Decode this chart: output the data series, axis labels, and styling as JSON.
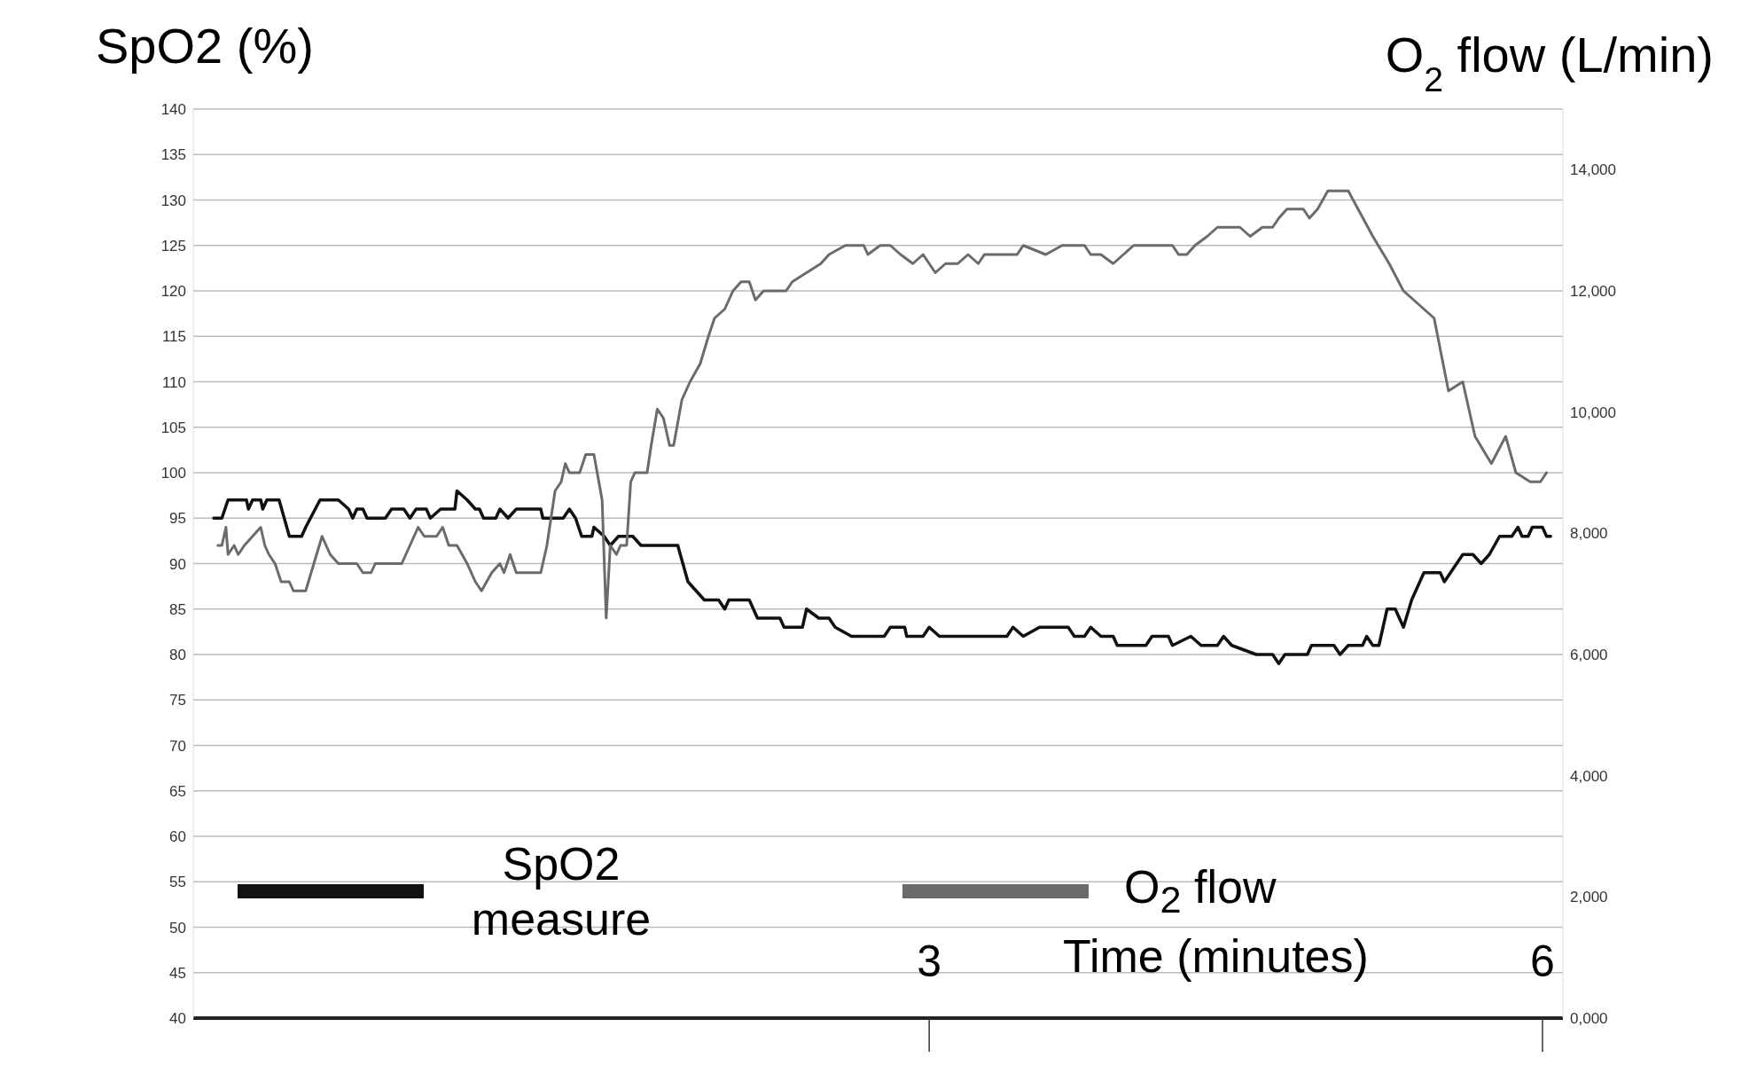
{
  "chart_data": {
    "type": "line",
    "xlabel": "Time (minutes)",
    "ylabel": "SpO2 (%)",
    "y2label": "O$_{2}$ flow (L/min)",
    "xlim": [
      -0.6,
      6.1
    ],
    "xticks": [
      3,
      6
    ],
    "ylim": [
      40,
      140
    ],
    "yticks": [
      40,
      45,
      50,
      55,
      60,
      65,
      70,
      75,
      80,
      85,
      90,
      95,
      100,
      105,
      110,
      115,
      120,
      125,
      130,
      135,
      140
    ],
    "y2lim": [
      0,
      15000
    ],
    "y2ticks": [
      {
        "value": 0,
        "label": "0,000"
      },
      {
        "value": 2000,
        "label": "2,000"
      },
      {
        "value": 4000,
        "label": "4,000"
      },
      {
        "value": 6000,
        "label": "6,000"
      },
      {
        "value": 8000,
        "label": "8,000"
      },
      {
        "value": 10000,
        "label": "10,000"
      },
      {
        "value": 12000,
        "label": "12,000"
      },
      {
        "value": 14000,
        "label": "14,000"
      }
    ],
    "grid": "y",
    "legend": "bottom",
    "marker": "none",
    "line_style": "solid",
    "series": [
      {
        "name": "SpO2 measure",
        "color": "#111111",
        "x": [
          -0.5,
          -0.46,
          -0.43,
          -0.34,
          -0.33,
          -0.31,
          -0.27,
          -0.26,
          -0.24,
          -0.18,
          -0.13,
          -0.07,
          -0.05,
          0.02,
          0.11,
          0.16,
          0.18,
          0.2,
          0.23,
          0.25,
          0.34,
          0.37,
          0.43,
          0.46,
          0.49,
          0.54,
          0.56,
          0.61,
          0.68,
          0.69,
          0.74,
          0.78,
          0.8,
          0.82,
          0.88,
          0.9,
          0.94,
          0.98,
          1.1,
          1.11,
          1.21,
          1.24,
          1.27,
          1.3,
          1.35,
          1.36,
          1.41,
          1.44,
          1.48,
          1.55,
          1.59,
          1.77,
          1.82,
          1.86,
          1.9,
          1.97,
          2.0,
          2.02,
          2.12,
          2.16,
          2.27,
          2.29,
          2.38,
          2.4,
          2.46,
          2.51,
          2.54,
          2.62,
          2.78,
          2.81,
          2.88,
          2.89,
          2.97,
          3.0,
          3.05,
          3.38,
          3.41,
          3.46,
          3.54,
          3.68,
          3.71,
          3.76,
          3.79,
          3.84,
          3.9,
          3.92,
          4.06,
          4.09,
          4.17,
          4.19,
          4.28,
          4.33,
          4.41,
          4.44,
          4.48,
          4.6,
          4.68,
          4.71,
          4.74,
          4.85,
          4.87,
          4.98,
          5.01,
          5.05,
          5.12,
          5.14,
          5.17,
          5.2,
          5.24,
          5.28,
          5.32,
          5.36,
          5.42,
          5.5,
          5.52,
          5.55,
          5.61,
          5.66,
          5.7,
          5.74,
          5.79,
          5.85,
          5.88,
          5.9,
          5.93,
          5.95,
          6.0,
          6.02,
          6.04
        ],
        "values": [
          95,
          95,
          97,
          97,
          96,
          97,
          97,
          96,
          97,
          97,
          93,
          93,
          94,
          97,
          97,
          96,
          95,
          96,
          96,
          95,
          95,
          96,
          96,
          95,
          96,
          96,
          95,
          96,
          96,
          98,
          97,
          96,
          96,
          95,
          95,
          96,
          95,
          96,
          96,
          95,
          95,
          96,
          95,
          93,
          93,
          94,
          93,
          92,
          93,
          93,
          92,
          92,
          88,
          87,
          86,
          86,
          85,
          86,
          86,
          84,
          84,
          83,
          83,
          85,
          84,
          84,
          83,
          82,
          82,
          83,
          83,
          82,
          82,
          83,
          82,
          82,
          83,
          82,
          83,
          83,
          82,
          82,
          83,
          82,
          82,
          81,
          81,
          82,
          82,
          81,
          82,
          81,
          81,
          82,
          81,
          80,
          80,
          79,
          80,
          80,
          81,
          81,
          80,
          81,
          81,
          82,
          81,
          81,
          85,
          85,
          83,
          86,
          89,
          89,
          88,
          89,
          91,
          91,
          90,
          91,
          93,
          93,
          94,
          93,
          93,
          94,
          94,
          93,
          93
        ]
      },
      {
        "name": "O$_{2}$ flow",
        "color": "#6b6b6b",
        "axis": "y2",
        "x": [
          -0.48,
          -0.46,
          -0.44,
          -0.43,
          -0.4,
          -0.38,
          -0.35,
          -0.31,
          -0.27,
          -0.25,
          -0.23,
          -0.2,
          -0.17,
          -0.13,
          -0.11,
          -0.05,
          -0.01,
          0.03,
          0.07,
          0.11,
          0.2,
          0.23,
          0.27,
          0.29,
          0.42,
          0.46,
          0.5,
          0.53,
          0.59,
          0.62,
          0.65,
          0.69,
          0.74,
          0.78,
          0.81,
          0.86,
          0.9,
          0.92,
          0.95,
          0.98,
          1.02,
          1.1,
          1.13,
          1.17,
          1.2,
          1.22,
          1.24,
          1.29,
          1.32,
          1.36,
          1.4,
          1.42,
          1.44,
          1.47,
          1.49,
          1.52,
          1.54,
          1.56,
          1.62,
          1.64,
          1.67,
          1.7,
          1.73,
          1.75,
          1.79,
          1.83,
          1.88,
          1.92,
          1.95,
          2.0,
          2.04,
          2.08,
          2.12,
          2.15,
          2.19,
          2.3,
          2.33,
          2.4,
          2.47,
          2.51,
          2.59,
          2.68,
          2.7,
          2.76,
          2.81,
          2.86,
          2.92,
          2.97,
          3.03,
          3.08,
          3.14,
          3.19,
          3.24,
          3.27,
          3.35,
          3.43,
          3.46,
          3.57,
          3.65,
          3.76,
          3.79,
          3.84,
          3.9,
          3.95,
          4.0,
          4.19,
          4.22,
          4.26,
          4.3,
          4.36,
          4.41,
          4.52,
          4.57,
          4.63,
          4.68,
          4.71,
          4.75,
          4.83,
          4.86,
          4.9,
          4.95,
          5.05,
          5.17,
          5.25,
          5.32,
          5.47,
          5.54,
          5.61,
          5.67,
          5.75,
          5.82,
          5.87,
          5.94,
          5.99,
          6.02
        ],
        "values": [
          7800,
          7800,
          8100,
          7650,
          7800,
          7650,
          7800,
          7950,
          8100,
          7800,
          7650,
          7500,
          7200,
          7200,
          7050,
          7050,
          7500,
          7950,
          7650,
          7500,
          7500,
          7350,
          7350,
          7500,
          7500,
          7800,
          8100,
          7950,
          7950,
          8100,
          7800,
          7800,
          7500,
          7200,
          7050,
          7350,
          7500,
          7350,
          7650,
          7350,
          7350,
          7350,
          7800,
          8700,
          8850,
          9150,
          9000,
          9000,
          9300,
          9300,
          8550,
          6600,
          7800,
          7650,
          7800,
          7800,
          8850,
          9000,
          9000,
          9450,
          10050,
          9900,
          9450,
          9450,
          10200,
          10500,
          10800,
          11250,
          11550,
          11700,
          12000,
          12150,
          12150,
          11850,
          12000,
          12000,
          12150,
          12300,
          12450,
          12600,
          12750,
          12750,
          12600,
          12750,
          12750,
          12600,
          12450,
          12600,
          12300,
          12450,
          12450,
          12600,
          12450,
          12600,
          12600,
          12600,
          12750,
          12600,
          12750,
          12750,
          12600,
          12600,
          12450,
          12600,
          12750,
          12750,
          12600,
          12600,
          12750,
          12900,
          13050,
          13050,
          12900,
          13050,
          13050,
          13200,
          13350,
          13350,
          13200,
          13350,
          13650,
          13650,
          12900,
          12450,
          12000,
          11550,
          10350,
          10500,
          9600,
          9150,
          9600,
          9000,
          8850,
          8850,
          9000
        ]
      }
    ]
  }
}
